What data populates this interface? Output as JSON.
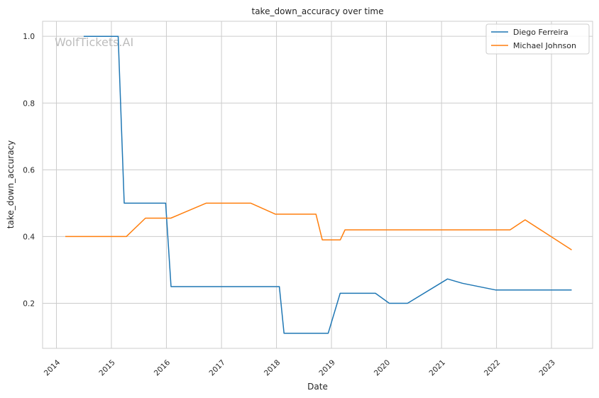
{
  "chart_data": {
    "type": "line",
    "title": "take_down_accuracy over time",
    "xlabel": "Date",
    "ylabel": "take_down_accuracy",
    "xlim": [
      "2013-10-01",
      "2023-10-01"
    ],
    "ylim": [
      0.065,
      1.045
    ],
    "x_ticks": [
      "2014",
      "2015",
      "2016",
      "2017",
      "2018",
      "2019",
      "2020",
      "2021",
      "2022",
      "2023"
    ],
    "y_ticks": [
      0.2,
      0.4,
      0.6,
      0.8,
      1.0
    ],
    "y_tick_labels": [
      "0.2",
      "0.4",
      "0.6",
      "0.8",
      "1.0"
    ],
    "grid": true,
    "legend_position": "top-right",
    "watermark": "WolfTickets.AI",
    "series": [
      {
        "name": "Diego Ferreira",
        "color": "#1f77b4",
        "points": [
          [
            "2014-07-01",
            1.0
          ],
          [
            "2015-02-15",
            1.0
          ],
          [
            "2015-03-27",
            0.5
          ],
          [
            "2015-12-27",
            0.5
          ],
          [
            "2016-02-01",
            0.25
          ],
          [
            "2018-01-20",
            0.25
          ],
          [
            "2018-02-20",
            0.11
          ],
          [
            "2018-12-10",
            0.11
          ],
          [
            "2019-02-28",
            0.23
          ],
          [
            "2019-10-20",
            0.23
          ],
          [
            "2020-01-20",
            0.2
          ],
          [
            "2020-05-20",
            0.2
          ],
          [
            "2021-02-10",
            0.273
          ],
          [
            "2021-05-20",
            0.26
          ],
          [
            "2021-12-25",
            0.24
          ],
          [
            "2023-05-15",
            0.24
          ]
        ]
      },
      {
        "name": "Michael Johnson",
        "color": "#ff7f0e",
        "points": [
          [
            "2014-03-01",
            0.4
          ],
          [
            "2015-04-10",
            0.4
          ],
          [
            "2015-08-15",
            0.455
          ],
          [
            "2016-01-30",
            0.455
          ],
          [
            "2016-09-20",
            0.5
          ],
          [
            "2017-07-15",
            0.5
          ],
          [
            "2017-12-25",
            0.467
          ],
          [
            "2018-09-20",
            0.467
          ],
          [
            "2018-11-01",
            0.39
          ],
          [
            "2019-03-01",
            0.39
          ],
          [
            "2019-04-01",
            0.42
          ],
          [
            "2022-04-01",
            0.42
          ],
          [
            "2022-07-10",
            0.45
          ],
          [
            "2023-05-15",
            0.36
          ]
        ]
      }
    ]
  }
}
